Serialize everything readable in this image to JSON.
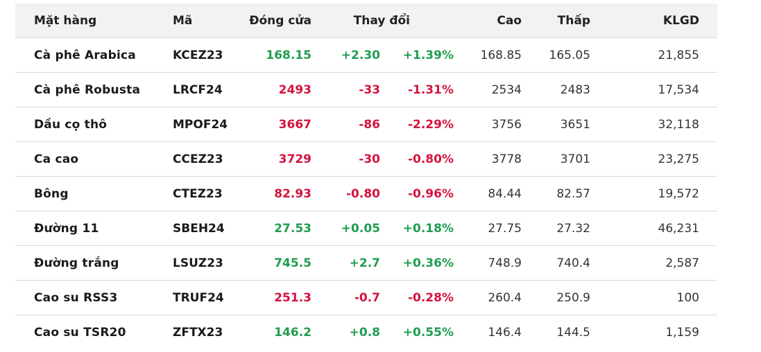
{
  "colors": {
    "up": "#1f9d4f",
    "down": "#d4133d",
    "header_bg": "#f2f2f2"
  },
  "header": {
    "name": "Mặt hàng",
    "code": "Mã",
    "close": "Đóng cửa",
    "change": "Thay đổi",
    "high": "Cao",
    "low": "Thấp",
    "volume": "KLGD"
  },
  "rows": [
    {
      "name": "Cà phê Arabica",
      "code": "KCEZ23",
      "close": "168.15",
      "change": "+2.30",
      "pct": "+1.39%",
      "high": "168.85",
      "low": "165.05",
      "volume": "21,855",
      "dir": "up"
    },
    {
      "name": "Cà phê Robusta",
      "code": "LRCF24",
      "close": "2493",
      "change": "-33",
      "pct": "-1.31%",
      "high": "2534",
      "low": "2483",
      "volume": "17,534",
      "dir": "down"
    },
    {
      "name": "Dầu cọ thô",
      "code": "MPOF24",
      "close": "3667",
      "change": "-86",
      "pct": "-2.29%",
      "high": "3756",
      "low": "3651",
      "volume": "32,118",
      "dir": "down"
    },
    {
      "name": "Ca cao",
      "code": "CCEZ23",
      "close": "3729",
      "change": "-30",
      "pct": "-0.80%",
      "high": "3778",
      "low": "3701",
      "volume": "23,275",
      "dir": "down"
    },
    {
      "name": "Bông",
      "code": "CTEZ23",
      "close": "82.93",
      "change": "-0.80",
      "pct": "-0.96%",
      "high": "84.44",
      "low": "82.57",
      "volume": "19,572",
      "dir": "down"
    },
    {
      "name": "Đường 11",
      "code": "SBEH24",
      "close": "27.53",
      "change": "+0.05",
      "pct": "+0.18%",
      "high": "27.75",
      "low": "27.32",
      "volume": "46,231",
      "dir": "up"
    },
    {
      "name": "Đường trắng",
      "code": "LSUZ23",
      "close": "745.5",
      "change": "+2.7",
      "pct": "+0.36%",
      "high": "748.9",
      "low": "740.4",
      "volume": "2,587",
      "dir": "up"
    },
    {
      "name": "Cao su RSS3",
      "code": "TRUF24",
      "close": "251.3",
      "change": "-0.7",
      "pct": "-0.28%",
      "high": "260.4",
      "low": "250.9",
      "volume": "100",
      "dir": "down"
    },
    {
      "name": "Cao su TSR20",
      "code": "ZFTX23",
      "close": "146.2",
      "change": "+0.8",
      "pct": "+0.55%",
      "high": "146.4",
      "low": "144.5",
      "volume": "1,159",
      "dir": "up"
    }
  ]
}
